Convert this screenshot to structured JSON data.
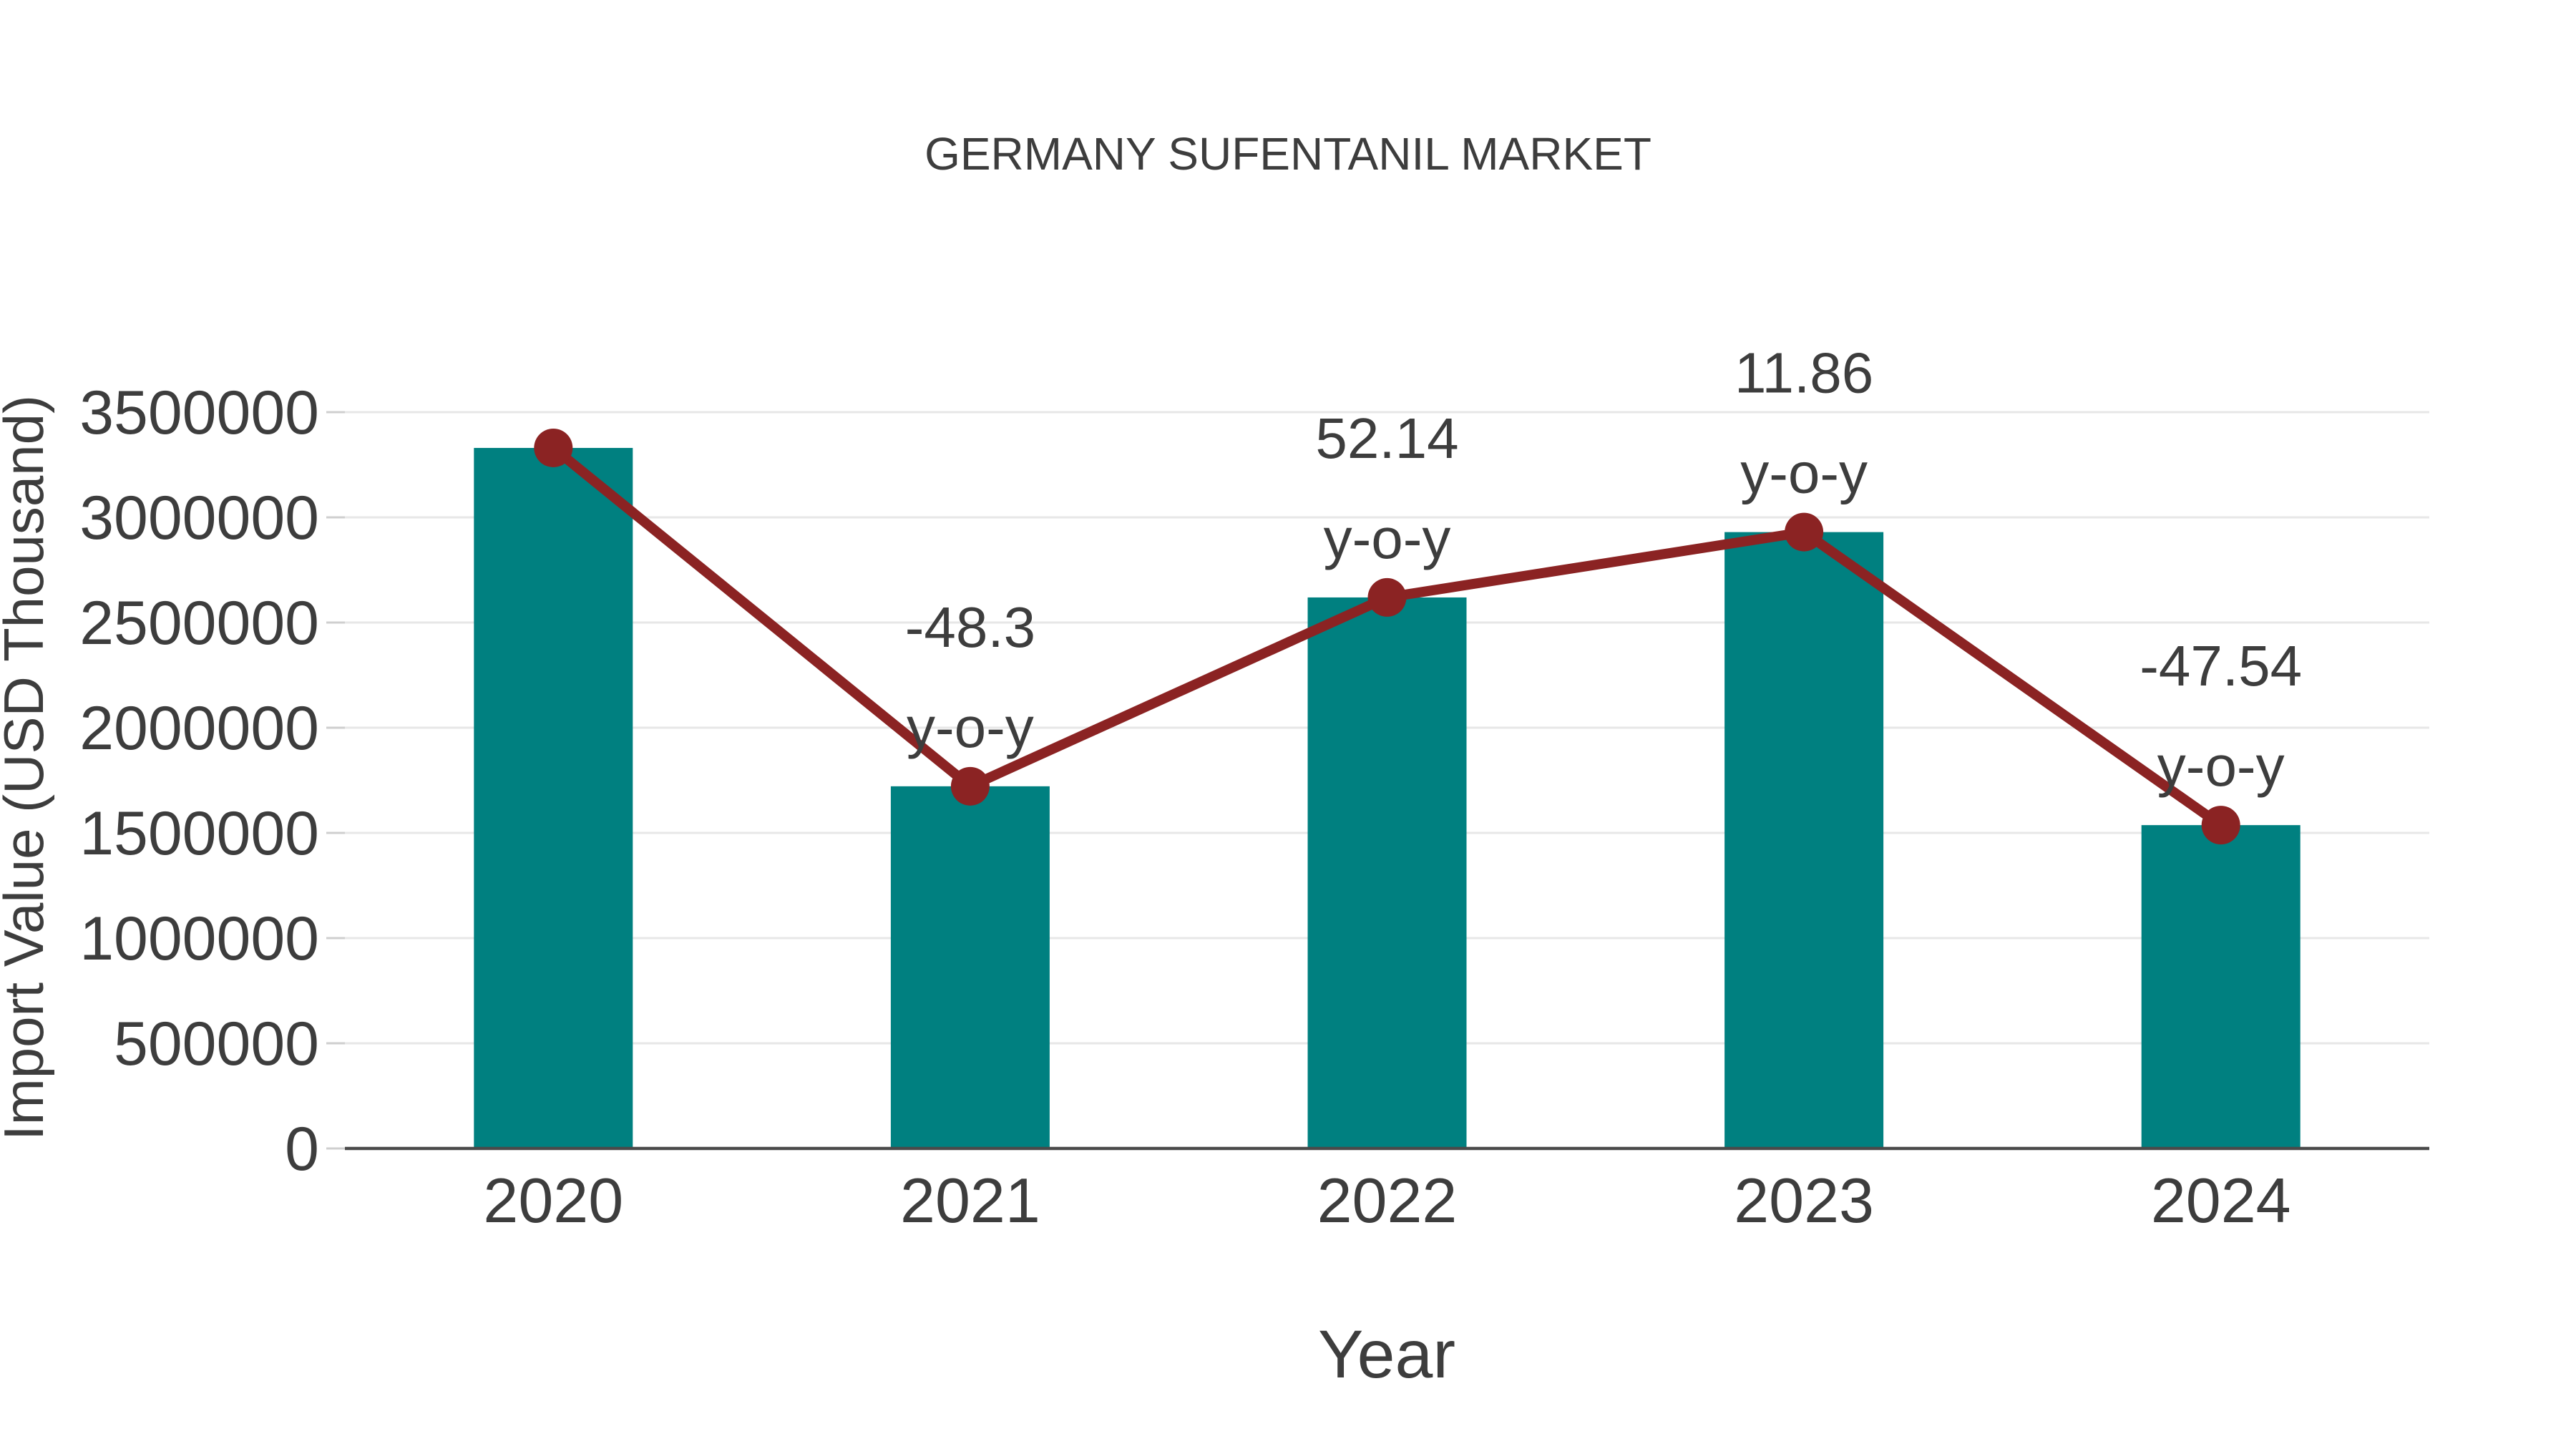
{
  "chart_data": {
    "type": "bar+line",
    "title": "GERMANY SUFENTANIL MARKET",
    "xlabel": "Year",
    "ylabel": "Import Value (USD Thousand)",
    "categories": [
      "2020",
      "2021",
      "2022",
      "2023",
      "2024"
    ],
    "bar_series": {
      "name": "Import Value (USD Thousand)",
      "values": [
        3330000,
        1721600,
        2619300,
        2929900,
        1537000
      ]
    },
    "line_series": {
      "name": "trend line through bar tops",
      "values": [
        3330000,
        1721600,
        2619300,
        2929900,
        1537000
      ]
    },
    "yoy_percent": [
      null,
      -48.3,
      52.14,
      11.86,
      -47.54
    ],
    "annotations": [
      {
        "category": "2021",
        "line1": "-48.3",
        "line2": "y-o-y"
      },
      {
        "category": "2022",
        "line1": "52.14",
        "line2": "y-o-y"
      },
      {
        "category": "2023",
        "line1": "11.86",
        "line2": "y-o-y"
      },
      {
        "category": "2024",
        "line1": "-47.54",
        "line2": "y-o-y"
      }
    ],
    "yticks": [
      0,
      500000,
      1000000,
      1500000,
      2000000,
      2500000,
      3000000,
      3500000
    ],
    "ylim": [
      0,
      3500000
    ],
    "grid": true,
    "legend_position": "none"
  },
  "colors": {
    "bar": "#008080",
    "line": "#8B2323",
    "text": "#3d3d3d",
    "gridline": "#e7e7e7",
    "axis_line": "#4a4a4a",
    "tick_mark": "#cfcfcf",
    "background": "#ffffff"
  }
}
